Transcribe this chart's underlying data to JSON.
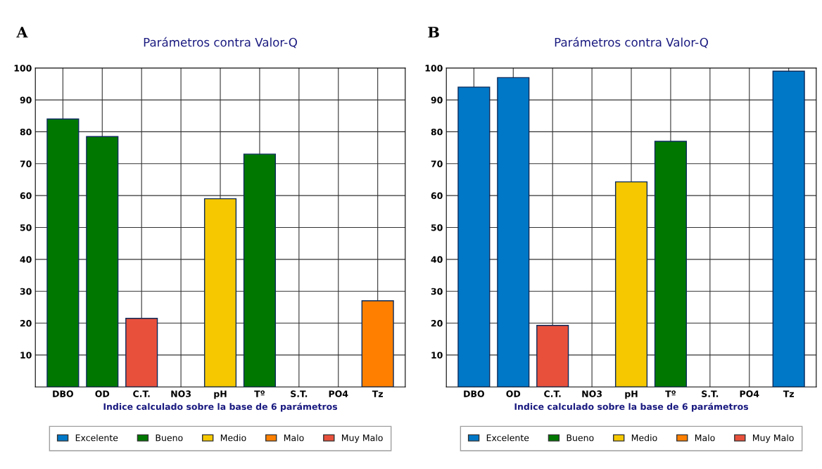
{
  "chart_data": [
    {
      "type": "bar",
      "title": "Parámetros contra Valor-Q",
      "xlabel": "Indice calculado sobre la base de 6 parámetros",
      "annotations": [
        "A"
      ],
      "categories": [
        "DBO",
        "OD",
        "C.T.",
        "NO3",
        "pH",
        "Tº",
        "S.T.",
        "PO4",
        "Tz"
      ],
      "ylim": [
        0,
        100
      ],
      "yticks": [
        10,
        20,
        30,
        40,
        50,
        60,
        70,
        80,
        90,
        100
      ],
      "grid": true,
      "legend": "bottom",
      "series": [
        {
          "name": "Excelente",
          "color": "#0078c8",
          "values": [
            null,
            null,
            null,
            null,
            null,
            null,
            null,
            null,
            null
          ]
        },
        {
          "name": "Bueno",
          "color": "#007800",
          "values": [
            84,
            78.5,
            null,
            null,
            null,
            73,
            null,
            null,
            null
          ]
        },
        {
          "name": "Medio",
          "color": "#f5c800",
          "values": [
            null,
            null,
            null,
            null,
            59,
            null,
            null,
            null,
            null
          ]
        },
        {
          "name": "Malo",
          "color": "#ff8000",
          "values": [
            null,
            null,
            null,
            null,
            null,
            null,
            null,
            null,
            27
          ]
        },
        {
          "name": "Muy Malo",
          "color": "#e8503c",
          "values": [
            null,
            null,
            21.5,
            null,
            null,
            null,
            null,
            null,
            null
          ]
        }
      ]
    },
    {
      "type": "bar",
      "title": "Parámetros contra Valor-Q",
      "xlabel": "Indice calculado sobre la base de 6 parámetros",
      "annotations": [
        "B"
      ],
      "categories": [
        "DBO",
        "OD",
        "C.T.",
        "NO3",
        "pH",
        "Tº",
        "S.T.",
        "PO4",
        "Tz"
      ],
      "ylim": [
        0,
        100
      ],
      "yticks": [
        10,
        20,
        30,
        40,
        50,
        60,
        70,
        80,
        90,
        100
      ],
      "grid": true,
      "legend": "bottom",
      "series": [
        {
          "name": "Excelente",
          "color": "#0078c8",
          "values": [
            94,
            97,
            null,
            null,
            null,
            null,
            null,
            null,
            99
          ]
        },
        {
          "name": "Bueno",
          "color": "#007800",
          "values": [
            null,
            null,
            null,
            null,
            null,
            77,
            null,
            null,
            null
          ]
        },
        {
          "name": "Medio",
          "color": "#f5c800",
          "values": [
            null,
            null,
            null,
            null,
            64.3,
            null,
            null,
            null,
            null
          ]
        },
        {
          "name": "Malo",
          "color": "#ff8000",
          "values": [
            null,
            null,
            null,
            null,
            null,
            null,
            null,
            null,
            null
          ]
        },
        {
          "name": "Muy Malo",
          "color": "#e8503c",
          "values": [
            null,
            null,
            19.3,
            null,
            null,
            null,
            null,
            null,
            null
          ]
        }
      ]
    }
  ]
}
